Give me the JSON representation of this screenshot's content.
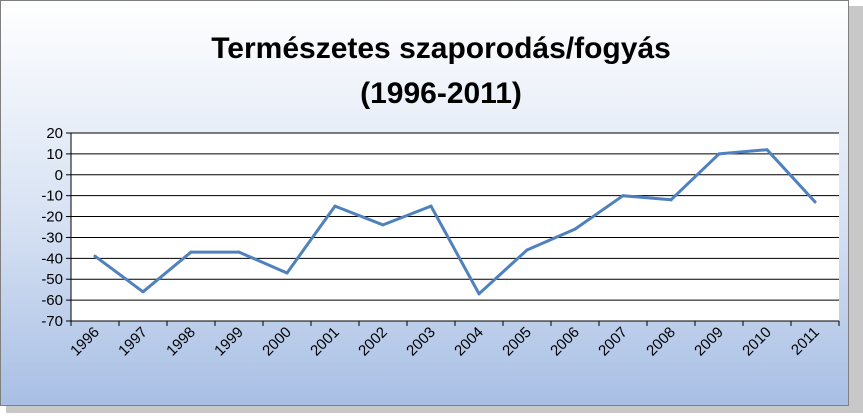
{
  "chart_data": {
    "type": "line",
    "title_line1": "Természetes szaporodás/fogyás",
    "title_line2": "(1996-2011)",
    "xlabel": "",
    "ylabel": "",
    "categories": [
      "1996",
      "1997",
      "1998",
      "1999",
      "2000",
      "2001",
      "2002",
      "2003",
      "2004",
      "2005",
      "2006",
      "2007",
      "2008",
      "2009",
      "2010",
      "2011"
    ],
    "series": [
      {
        "values": [
          -39,
          -56,
          -37,
          -37,
          -47,
          -15,
          -24,
          -15,
          -57,
          -36,
          -26,
          -10,
          -12,
          10,
          12,
          -13
        ]
      }
    ],
    "ylim": [
      -70,
      20
    ],
    "yticks": [
      "20",
      "10",
      "0",
      "-10",
      "-20",
      "-30",
      "-40",
      "-50",
      "-60",
      "-70"
    ],
    "grid": true,
    "legend": "none",
    "colors": {
      "line": "#4f81bd",
      "background_top": "#ffffff",
      "background_bottom": "#aec3e6",
      "plot_area": "#ffffff",
      "grid": "#000000"
    }
  }
}
